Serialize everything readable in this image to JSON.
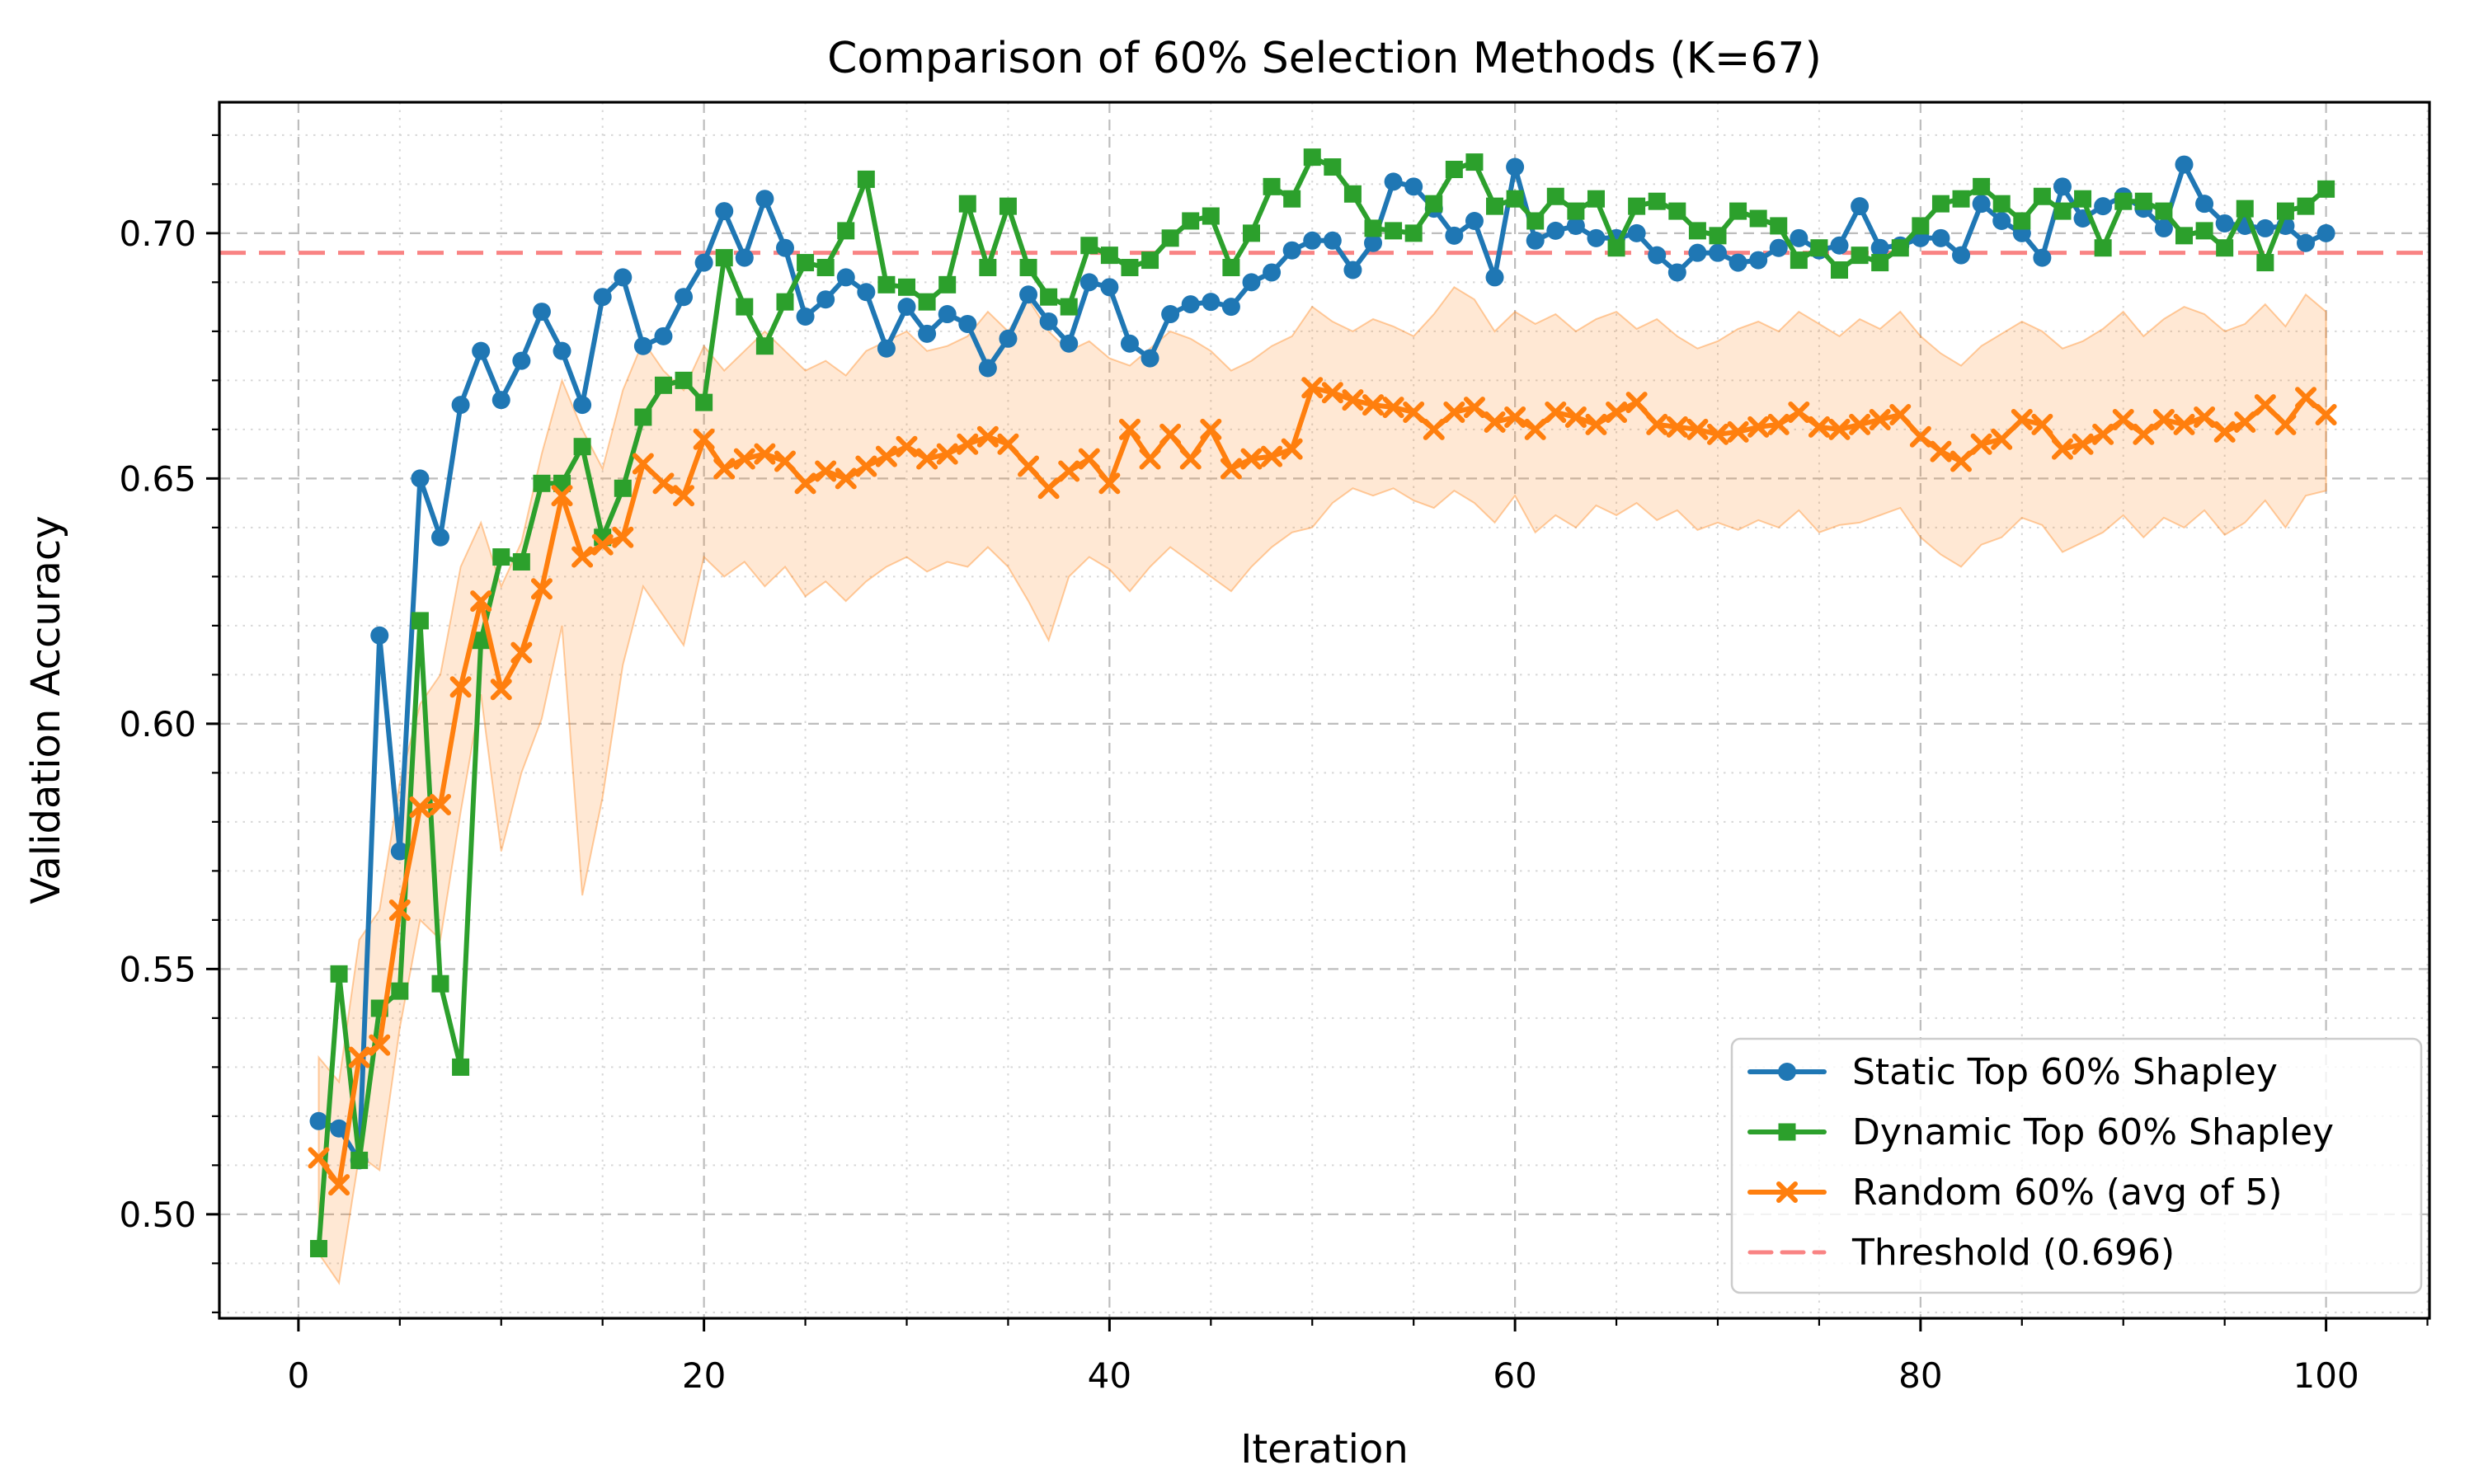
{
  "chart_data": {
    "type": "line",
    "title": "Comparison of 60% Selection Methods (K=67)",
    "xlabel": "Iteration",
    "ylabel": "Validation Accuracy",
    "xlim": [
      -3.9,
      105.1
    ],
    "ylim": [
      0.4788,
      0.7267
    ],
    "x_ticks": [
      0,
      20,
      40,
      60,
      80,
      100
    ],
    "y_ticks": [
      0.5,
      0.55,
      0.6,
      0.65,
      0.7
    ],
    "x_minor_step": 5,
    "y_minor_step": 0.01,
    "grid": true,
    "legend_position": "lower right",
    "threshold": {
      "label": "Threshold (0.696)",
      "value": 0.696,
      "color": "#f98383"
    },
    "x": [
      1,
      2,
      3,
      4,
      5,
      6,
      7,
      8,
      9,
      10,
      11,
      12,
      13,
      14,
      15,
      16,
      17,
      18,
      19,
      20,
      21,
      22,
      23,
      24,
      25,
      26,
      27,
      28,
      29,
      30,
      31,
      32,
      33,
      34,
      35,
      36,
      37,
      38,
      39,
      40,
      41,
      42,
      43,
      44,
      45,
      46,
      47,
      48,
      49,
      50,
      51,
      52,
      53,
      54,
      55,
      56,
      57,
      58,
      59,
      60,
      61,
      62,
      63,
      64,
      65,
      66,
      67,
      68,
      69,
      70,
      71,
      72,
      73,
      74,
      75,
      76,
      77,
      78,
      79,
      80,
      81,
      82,
      83,
      84,
      85,
      86,
      87,
      88,
      89,
      90,
      91,
      92,
      93,
      94,
      95,
      96,
      97,
      98,
      99,
      100
    ],
    "series": [
      {
        "name": "Static Top 60% Shapley",
        "color": "#1f77b4",
        "marker": "circle",
        "values": [
          0.519,
          0.5175,
          0.511,
          0.618,
          0.574,
          0.65,
          0.638,
          0.665,
          0.676,
          0.666,
          0.674,
          0.684,
          0.676,
          0.665,
          0.687,
          0.691,
          0.677,
          0.679,
          0.687,
          0.694,
          0.7045,
          0.695,
          0.707,
          0.697,
          0.683,
          0.6865,
          0.691,
          0.688,
          0.6765,
          0.685,
          0.6795,
          0.6835,
          0.6815,
          0.6725,
          0.6785,
          0.6875,
          0.682,
          0.6775,
          0.69,
          0.689,
          0.6775,
          0.6745,
          0.6835,
          0.6855,
          0.686,
          0.685,
          0.69,
          0.692,
          0.6965,
          0.6985,
          0.6985,
          0.6925,
          0.698,
          0.7105,
          0.7095,
          0.705,
          0.6995,
          0.7025,
          0.691,
          0.7135,
          0.6985,
          0.7005,
          0.7015,
          0.699,
          0.699,
          0.7,
          0.6955,
          0.692,
          0.696,
          0.696,
          0.694,
          0.6945,
          0.697,
          0.699,
          0.6965,
          0.6975,
          0.7055,
          0.697,
          0.6975,
          0.699,
          0.699,
          0.6955,
          0.706,
          0.7025,
          0.7,
          0.695,
          0.7095,
          0.703,
          0.7055,
          0.7075,
          0.705,
          0.701,
          0.714,
          0.706,
          0.702,
          0.7015,
          0.701,
          0.7015,
          0.698,
          0.7
        ]
      },
      {
        "name": "Dynamic Top 60% Shapley",
        "color": "#2ca02c",
        "marker": "square",
        "values": [
          0.493,
          0.549,
          0.511,
          0.542,
          0.5455,
          0.621,
          0.547,
          0.53,
          0.617,
          0.634,
          0.633,
          0.649,
          0.649,
          0.6565,
          0.638,
          0.648,
          0.6625,
          0.669,
          0.67,
          0.6655,
          0.695,
          0.685,
          0.677,
          0.686,
          0.694,
          0.693,
          0.7005,
          0.711,
          0.6895,
          0.689,
          0.686,
          0.6895,
          0.706,
          0.693,
          0.7055,
          0.693,
          0.687,
          0.685,
          0.6975,
          0.6955,
          0.693,
          0.6945,
          0.699,
          0.7025,
          0.7035,
          0.693,
          0.7,
          0.7095,
          0.707,
          0.7155,
          0.7135,
          0.708,
          0.701,
          0.7005,
          0.7,
          0.706,
          0.713,
          0.7145,
          0.7055,
          0.707,
          0.7025,
          0.7075,
          0.7045,
          0.707,
          0.697,
          0.7055,
          0.7065,
          0.7045,
          0.7005,
          0.6995,
          0.7045,
          0.703,
          0.7015,
          0.6945,
          0.697,
          0.6925,
          0.6955,
          0.694,
          0.697,
          0.7015,
          0.706,
          0.707,
          0.7095,
          0.706,
          0.7025,
          0.7075,
          0.7045,
          0.707,
          0.697,
          0.7065,
          0.7065,
          0.7045,
          0.6995,
          0.7005,
          0.697,
          0.705,
          0.694,
          0.7045,
          0.7055,
          0.709
        ]
      },
      {
        "name": "Random 60% (avg of 5)",
        "color": "#ff7f0e",
        "marker": "x",
        "band_alpha": 0.18,
        "values": [
          0.5115,
          0.506,
          0.532,
          0.5345,
          0.562,
          0.583,
          0.5835,
          0.6075,
          0.625,
          0.607,
          0.6145,
          0.6275,
          0.6465,
          0.634,
          0.6365,
          0.638,
          0.653,
          0.649,
          0.6465,
          0.658,
          0.652,
          0.654,
          0.655,
          0.6535,
          0.649,
          0.6515,
          0.65,
          0.6525,
          0.6545,
          0.6565,
          0.654,
          0.655,
          0.657,
          0.6585,
          0.657,
          0.6525,
          0.648,
          0.6515,
          0.654,
          0.649,
          0.66,
          0.654,
          0.659,
          0.654,
          0.66,
          0.652,
          0.654,
          0.6545,
          0.656,
          0.6685,
          0.6675,
          0.666,
          0.665,
          0.6645,
          0.6635,
          0.66,
          0.6635,
          0.6645,
          0.6615,
          0.6625,
          0.66,
          0.6635,
          0.6625,
          0.661,
          0.6635,
          0.6655,
          0.661,
          0.6605,
          0.66,
          0.659,
          0.6595,
          0.6605,
          0.661,
          0.6635,
          0.6605,
          0.66,
          0.661,
          0.662,
          0.663,
          0.6585,
          0.6555,
          0.6535,
          0.657,
          0.658,
          0.662,
          0.661,
          0.656,
          0.657,
          0.659,
          0.662,
          0.659,
          0.662,
          0.661,
          0.6625,
          0.6595,
          0.6615,
          0.665,
          0.661,
          0.6665,
          0.663
        ],
        "band_upper": [
          0.532,
          0.527,
          0.556,
          0.562,
          0.588,
          0.604,
          0.61,
          0.632,
          0.641,
          0.628,
          0.637,
          0.655,
          0.67,
          0.66,
          0.652,
          0.668,
          0.678,
          0.672,
          0.668,
          0.677,
          0.672,
          0.676,
          0.68,
          0.676,
          0.672,
          0.674,
          0.671,
          0.676,
          0.678,
          0.68,
          0.676,
          0.677,
          0.679,
          0.684,
          0.68,
          0.6865,
          0.68,
          0.676,
          0.678,
          0.6745,
          0.673,
          0.6765,
          0.68,
          0.6785,
          0.676,
          0.672,
          0.674,
          0.677,
          0.679,
          0.685,
          0.682,
          0.68,
          0.6825,
          0.681,
          0.679,
          0.6835,
          0.689,
          0.6865,
          0.68,
          0.684,
          0.6815,
          0.6835,
          0.68,
          0.6825,
          0.684,
          0.6805,
          0.6825,
          0.679,
          0.6765,
          0.678,
          0.6805,
          0.682,
          0.68,
          0.684,
          0.6815,
          0.679,
          0.6825,
          0.6805,
          0.684,
          0.679,
          0.6755,
          0.673,
          0.677,
          0.6795,
          0.682,
          0.68,
          0.6765,
          0.678,
          0.6805,
          0.684,
          0.679,
          0.6825,
          0.685,
          0.6835,
          0.68,
          0.6815,
          0.6855,
          0.681,
          0.6875,
          0.684
        ],
        "band_lower": [
          0.492,
          0.486,
          0.512,
          0.509,
          0.538,
          0.56,
          0.556,
          0.582,
          0.606,
          0.574,
          0.59,
          0.601,
          0.62,
          0.565,
          0.585,
          0.612,
          0.628,
          0.622,
          0.616,
          0.634,
          0.63,
          0.633,
          0.628,
          0.632,
          0.626,
          0.629,
          0.625,
          0.629,
          0.632,
          0.634,
          0.631,
          0.633,
          0.632,
          0.636,
          0.632,
          0.625,
          0.617,
          0.63,
          0.634,
          0.6315,
          0.627,
          0.632,
          0.636,
          0.633,
          0.63,
          0.627,
          0.632,
          0.636,
          0.639,
          0.64,
          0.645,
          0.648,
          0.6465,
          0.648,
          0.6455,
          0.644,
          0.6475,
          0.645,
          0.641,
          0.6465,
          0.639,
          0.6425,
          0.64,
          0.6445,
          0.6425,
          0.645,
          0.6415,
          0.6435,
          0.6395,
          0.641,
          0.6395,
          0.6415,
          0.64,
          0.6435,
          0.639,
          0.6405,
          0.641,
          0.6425,
          0.644,
          0.638,
          0.6345,
          0.632,
          0.6365,
          0.638,
          0.642,
          0.6405,
          0.635,
          0.637,
          0.639,
          0.6425,
          0.638,
          0.642,
          0.64,
          0.6435,
          0.6385,
          0.641,
          0.6455,
          0.64,
          0.6465,
          0.6475
        ]
      }
    ]
  }
}
